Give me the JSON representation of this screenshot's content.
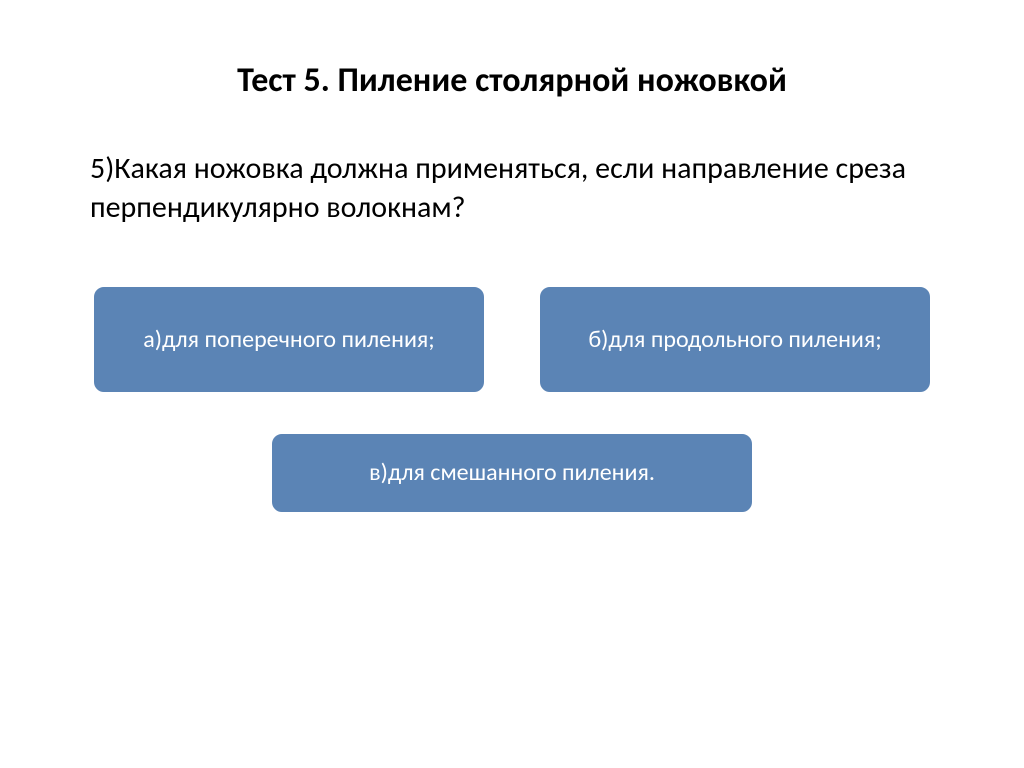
{
  "title": "Тест 5. Пиление столярной ножовкой",
  "question": "5)Какая ножовка должна применяться, если направление среза перпендикулярно волокнам?",
  "options": {
    "a": "а)для поперечного пиления;",
    "b": "б)для продольного пиления;",
    "c": "в)для смешанного пиления."
  },
  "colors": {
    "option_bg": "#5b84b5",
    "option_text": "#ffffff",
    "page_bg": "#ffffff",
    "text": "#000000"
  },
  "typography": {
    "title_fontsize": 34,
    "title_weight": 700,
    "question_fontsize": 30,
    "option_fontsize": 24,
    "font_family": "Calibri"
  },
  "layout": {
    "option_border_radius": 10,
    "option_ab_width": 390,
    "option_ab_height": 105,
    "option_c_width": 480,
    "option_c_height": 78
  }
}
